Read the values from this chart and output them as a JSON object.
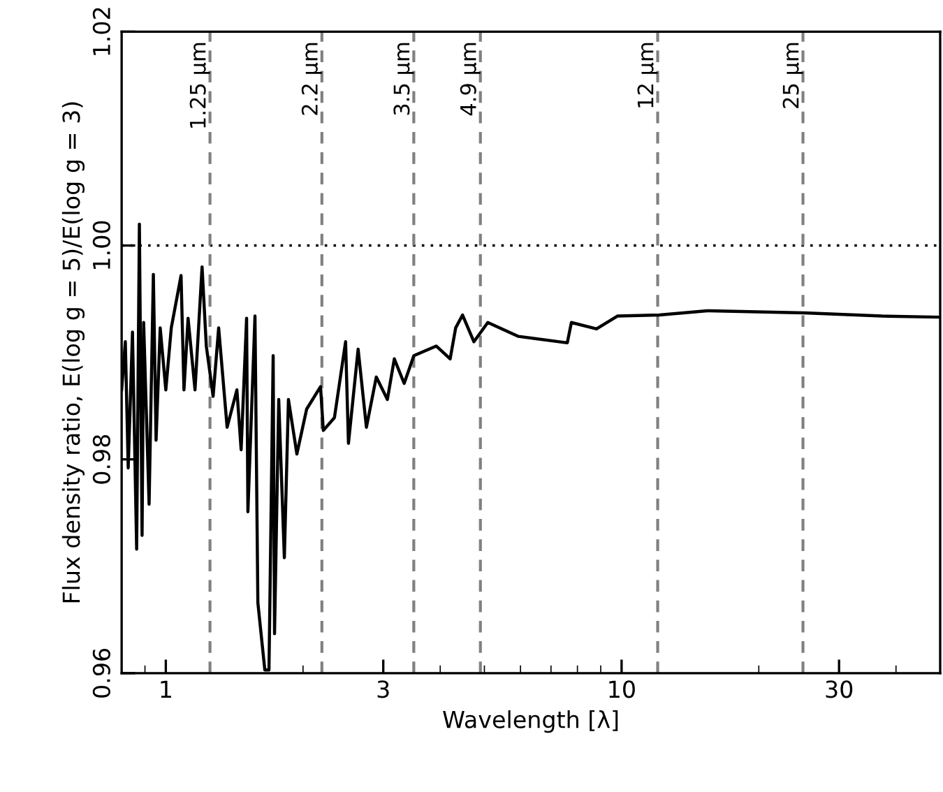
{
  "chart_data": {
    "type": "line",
    "xlabel": "Wavelength [λ]",
    "ylabel": "Flux density ratio, E(log g = 5)/E(log g = 3)",
    "log": "x",
    "xlim": [
      0.8,
      50
    ],
    "xticks": [
      1,
      3,
      10,
      30
    ],
    "ylim": [
      0.96,
      1.02
    ],
    "yticks": [
      {
        "value": 0.96,
        "label": "0.96"
      },
      {
        "value": 0.98,
        "label": "0.98"
      },
      {
        "value": 1.0,
        "label": "1.00"
      },
      {
        "value": 1.02,
        "label": "1.02"
      }
    ],
    "grid": false,
    "legend": false,
    "marker": "none",
    "line_style": "solid",
    "series": [
      {
        "color": "#000000",
        "x": [
          0.8,
          0.815,
          0.827,
          0.845,
          0.863,
          0.875,
          0.887,
          0.894,
          0.919,
          0.939,
          0.952,
          0.972,
          1.0,
          1.028,
          1.08,
          1.096,
          1.119,
          1.159,
          1.201,
          1.227,
          1.27,
          1.306,
          1.363,
          1.432,
          1.463,
          1.504,
          1.514,
          1.569,
          1.592,
          1.649,
          1.684,
          1.72,
          1.732,
          1.769,
          1.82,
          1.858,
          1.939,
          2.037,
          2.185,
          2.216,
          2.344,
          2.48,
          2.516,
          2.642,
          2.755,
          2.896,
          3.063,
          3.172,
          3.334,
          3.501,
          3.92,
          4.206,
          4.325,
          4.478,
          4.742,
          5.087,
          5.94,
          7.6,
          7.76,
          8.81,
          9.79,
          12.1,
          15.4,
          25.2,
          37.3,
          50
        ],
        "values": [
          0.9865,
          0.991,
          0.9792,
          0.9919,
          0.9716,
          1.002,
          0.9729,
          0.9928,
          0.9758,
          0.9973,
          0.9818,
          0.9923,
          0.9865,
          0.9923,
          0.9972,
          0.9865,
          0.9932,
          0.9865,
          0.998,
          0.9906,
          0.9859,
          0.9923,
          0.983,
          0.9865,
          0.9809,
          0.9932,
          0.9751,
          0.9934,
          0.9666,
          0.9603,
          0.9603,
          0.9897,
          0.9637,
          0.9856,
          0.9708,
          0.9856,
          0.9805,
          0.9847,
          0.9868,
          0.9827,
          0.9839,
          0.991,
          0.9815,
          0.9903,
          0.983,
          0.9877,
          0.9856,
          0.9894,
          0.9871,
          0.9897,
          0.9906,
          0.9894,
          0.9923,
          0.9935,
          0.991,
          0.9928,
          0.9915,
          0.9909,
          0.9928,
          0.9922,
          0.9934,
          0.9935,
          0.9939,
          0.9937,
          0.9934,
          0.9933
        ]
      }
    ],
    "ref_lines": [
      {
        "axis": "y",
        "value": 1.0,
        "color": "#000000",
        "line_style": "dotted"
      },
      {
        "axis": "x",
        "value": 1.25,
        "label": "1.25 μm",
        "color": "#808080",
        "line_style": "dashed"
      },
      {
        "axis": "x",
        "value": 2.2,
        "label": "2.2 μm",
        "color": "#808080",
        "line_style": "dashed"
      },
      {
        "axis": "x",
        "value": 3.5,
        "label": "3.5 μm",
        "color": "#808080",
        "line_style": "dashed"
      },
      {
        "axis": "x",
        "value": 4.9,
        "label": "4.9 μm",
        "color": "#808080",
        "line_style": "dashed"
      },
      {
        "axis": "x",
        "value": 12,
        "label": "12 μm",
        "color": "#808080",
        "line_style": "dashed"
      },
      {
        "axis": "x",
        "value": 25,
        "label": "25 μm",
        "color": "#808080",
        "line_style": "dashed"
      }
    ]
  }
}
